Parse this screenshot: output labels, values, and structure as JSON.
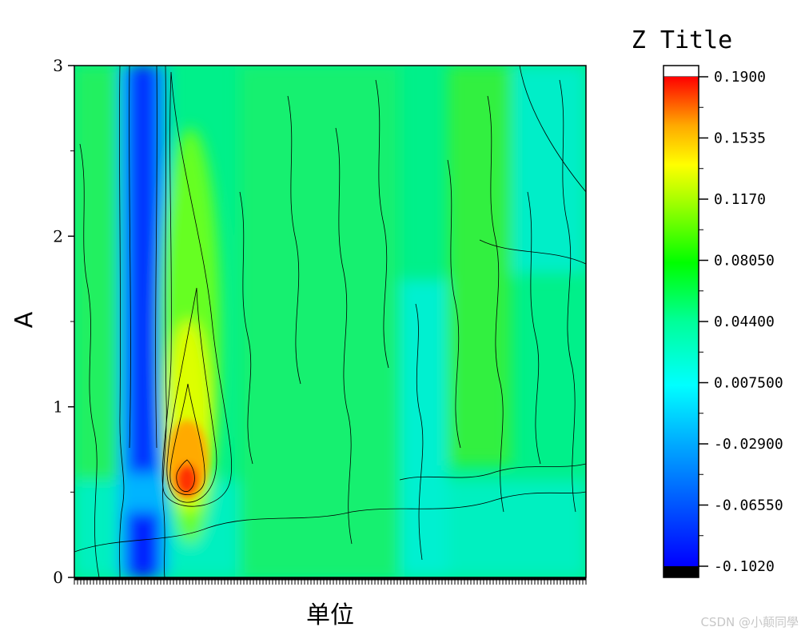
{
  "chart_data": {
    "type": "heatmap",
    "xlabel": "单位",
    "ylabel": "A",
    "zlabel": "Z Title",
    "ylim": [
      0,
      3
    ],
    "y_ticks": [
      0,
      1,
      2,
      3
    ],
    "zlim": [
      -0.102,
      0.19
    ],
    "colorbar_ticks": [
      "0.1900",
      "0.1535",
      "0.1170",
      "0.08050",
      "0.04400",
      "0.007500",
      "-0.02900",
      "-0.06550",
      "-0.1020"
    ],
    "colorbar_tick_values": [
      0.19,
      0.1535,
      0.117,
      0.0805,
      0.044,
      0.0075,
      -0.029,
      -0.0655,
      -0.102
    ],
    "colors": {
      "blue": "#0000ff",
      "cyan": "#00ffff",
      "green": "#00ff00",
      "yellow": "#ffff00",
      "red": "#ff0000",
      "over": "#ffffff",
      "under": "#000000"
    },
    "x_tick_labels_visible": false,
    "grid": false,
    "legend": "right colorbar",
    "contour_lines": true
  },
  "watermark": "CSDN @小颠同學"
}
